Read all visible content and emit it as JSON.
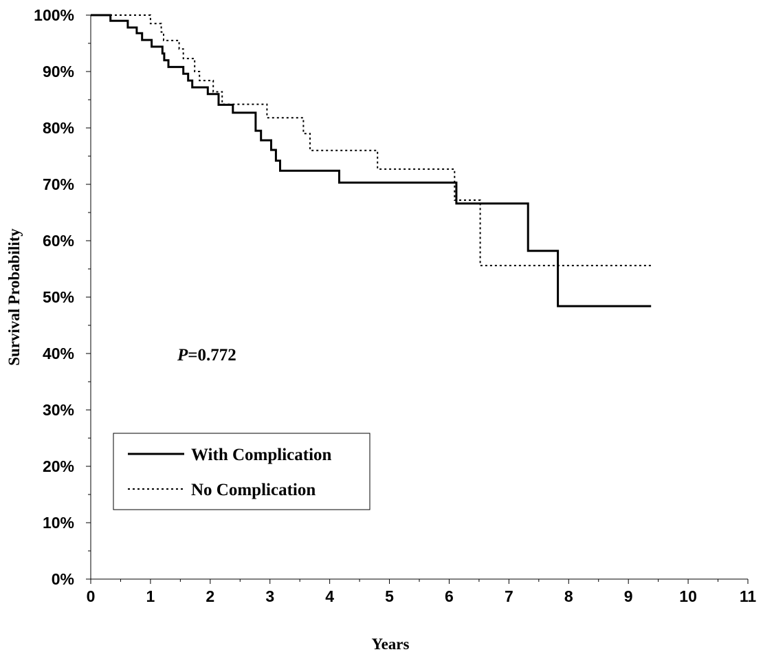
{
  "chart_data": {
    "type": "line",
    "step": true,
    "xlabel": "Years",
    "ylabel": "Survival Probability",
    "xlim": [
      0,
      11
    ],
    "ylim": [
      0,
      1
    ],
    "x_ticks": [
      "0",
      "1",
      "2",
      "3",
      "4",
      "5",
      "6",
      "7",
      "8",
      "9",
      "10",
      "11"
    ],
    "y_ticks": [
      "0%",
      "10%",
      "20%",
      "30%",
      "40%",
      "50%",
      "60%",
      "70%",
      "80%",
      "90%",
      "100%"
    ],
    "annotation": {
      "italic": "P",
      "text": "=0.772"
    },
    "legend": {
      "placement": "bottom-left"
    },
    "grid": false,
    "series": [
      {
        "name": "With Complication",
        "style": "solid",
        "color": "#000000",
        "points": [
          [
            0,
            1.0
          ],
          [
            0.33,
            0.99
          ],
          [
            0.62,
            0.978
          ],
          [
            0.77,
            0.968
          ],
          [
            0.86,
            0.956
          ],
          [
            1.02,
            0.944
          ],
          [
            1.2,
            0.932
          ],
          [
            1.23,
            0.92
          ],
          [
            1.3,
            0.908
          ],
          [
            1.55,
            0.896
          ],
          [
            1.63,
            0.884
          ],
          [
            1.7,
            0.872
          ],
          [
            1.96,
            0.86
          ],
          [
            2.14,
            0.841
          ],
          [
            2.38,
            0.827
          ],
          [
            2.76,
            0.795
          ],
          [
            2.85,
            0.778
          ],
          [
            3.02,
            0.761
          ],
          [
            3.1,
            0.742
          ],
          [
            3.17,
            0.724
          ],
          [
            4.16,
            0.703
          ],
          [
            6.12,
            0.666
          ],
          [
            7.32,
            0.582
          ],
          [
            7.82,
            0.484
          ],
          [
            9.38,
            0.484
          ]
        ]
      },
      {
        "name": "No Complication",
        "style": "dotted",
        "color": "#000000",
        "points": [
          [
            0,
            1.0
          ],
          [
            1.0,
            0.985
          ],
          [
            1.18,
            0.97
          ],
          [
            1.22,
            0.955
          ],
          [
            1.48,
            0.94
          ],
          [
            1.55,
            0.923
          ],
          [
            1.74,
            0.9
          ],
          [
            1.82,
            0.884
          ],
          [
            2.05,
            0.864
          ],
          [
            2.2,
            0.842
          ],
          [
            2.95,
            0.818
          ],
          [
            3.56,
            0.79
          ],
          [
            3.67,
            0.76
          ],
          [
            4.8,
            0.727
          ],
          [
            6.09,
            0.672
          ],
          [
            6.52,
            0.556
          ],
          [
            9.38,
            0.556
          ]
        ]
      }
    ]
  }
}
